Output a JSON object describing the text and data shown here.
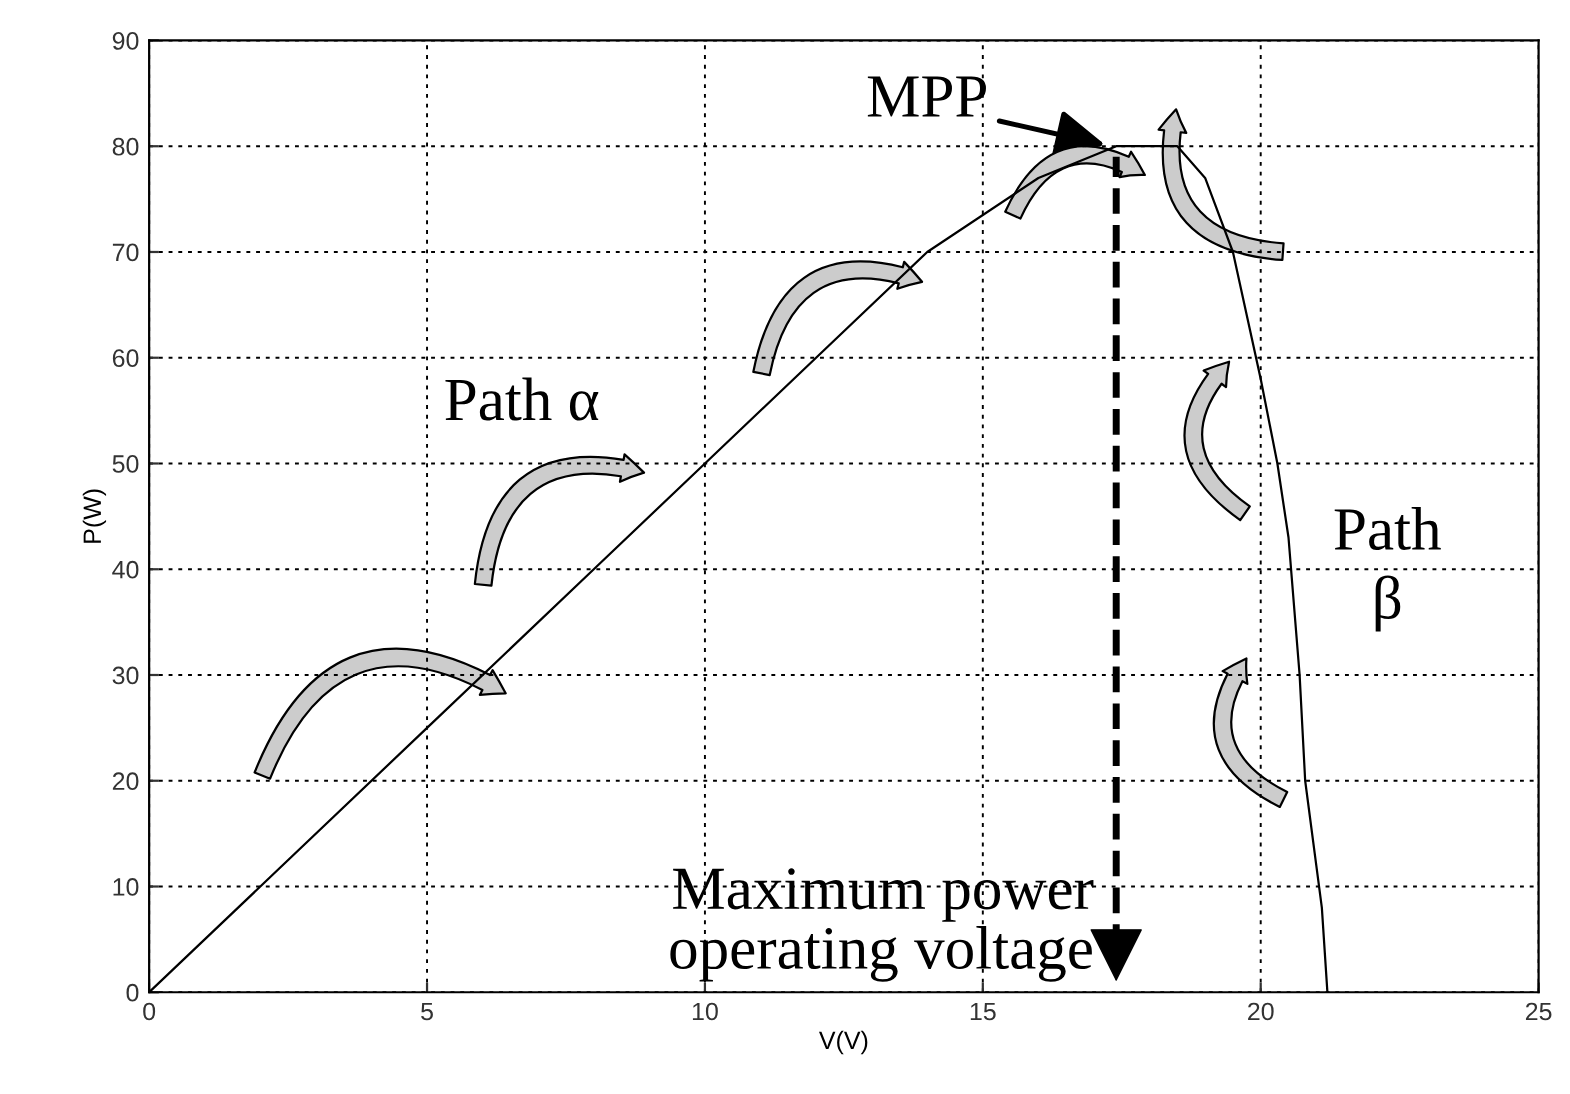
{
  "chart_data": {
    "type": "line",
    "xlabel": "V(V)",
    "ylabel": "P(W)",
    "x": [
      0,
      2,
      5,
      8,
      10,
      12,
      14,
      16,
      17.4,
      18,
      18.5,
      19,
      19.5,
      20,
      20.3,
      20.5,
      20.7,
      20.8,
      21,
      21.1,
      21.2
    ],
    "series": [
      {
        "color": "#000000",
        "values": [
          0,
          10,
          25,
          40,
          50,
          60,
          70,
          77,
          80,
          80,
          80,
          77,
          70,
          58,
          50,
          43,
          30,
          20,
          12,
          8,
          0
        ]
      }
    ],
    "xlim": [
      0,
      25
    ],
    "xticks": [
      0,
      5,
      10,
      15,
      20,
      25
    ],
    "ylim": [
      0,
      90
    ],
    "yticks": [
      0,
      10,
      20,
      30,
      40,
      50,
      60,
      70,
      80,
      90
    ],
    "grid": true,
    "marker": "none",
    "line_style": "solid",
    "ref_lines": [
      {
        "axis": "x",
        "value": 17.4,
        "label": "Maximum power\noperating voltage",
        "line_style": "dashed",
        "color": "#000000"
      }
    ],
    "annotations": [
      {
        "text": "MPP",
        "x": 17.4,
        "y": 80
      },
      "Path α",
      "Path\nβ"
    ]
  }
}
